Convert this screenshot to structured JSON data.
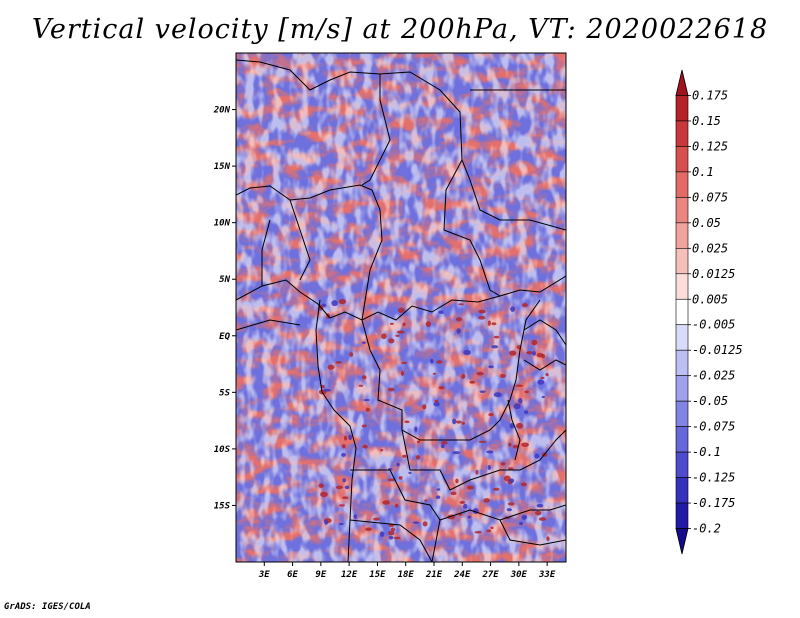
{
  "title": "Vertical velocity [m/s] at 200hPa, VT: 2020022618",
  "credit": "GrADS: IGES/COLA",
  "map": {
    "lat_labels": [
      "20N",
      "15N",
      "10N",
      "5N",
      "EQ",
      "5S",
      "10S",
      "15S"
    ],
    "lat_values": [
      20,
      15,
      10,
      5,
      0,
      -5,
      -10,
      -15
    ],
    "lon_labels": [
      "3E",
      "6E",
      "9E",
      "12E",
      "15E",
      "18E",
      "21E",
      "24E",
      "27E",
      "30E",
      "33E"
    ],
    "lon_values": [
      3,
      6,
      9,
      12,
      15,
      18,
      21,
      24,
      27,
      30,
      33
    ],
    "lon_range": [
      0,
      35
    ],
    "lat_range": [
      -20,
      25
    ]
  },
  "colorbar": {
    "labels": [
      "0.175",
      "0.15",
      "0.125",
      "0.1",
      "0.075",
      "0.05",
      "0.025",
      "0.0125",
      "0.005",
      "-0.005",
      "-0.0125",
      "-0.025",
      "-0.05",
      "-0.075",
      "-0.1",
      "-0.125",
      "-0.175",
      "-0.2"
    ],
    "colors": [
      "#a0141e",
      "#b52228",
      "#c8373a",
      "#d6504d",
      "#e26b66",
      "#ea8680",
      "#f1a39c",
      "#f6c0ba",
      "#fbded9",
      "#ffffff",
      "#d9dcf8",
      "#bcbff3",
      "#9fa1ec",
      "#8284e3",
      "#6767d9",
      "#4d4bcc",
      "#3531bd",
      "#211aa6",
      "#140c8c"
    ]
  },
  "field_colors": {
    "up": "#e4706c",
    "down": "#6e70dd",
    "up_strong": "#b1262c",
    "down_strong": "#3c36c0"
  }
}
